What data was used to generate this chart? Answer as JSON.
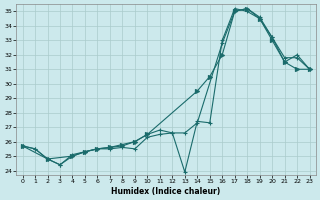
{
  "xlabel": "Humidex (Indice chaleur)",
  "xlim": [
    -0.5,
    23.5
  ],
  "ylim": [
    23.7,
    35.5
  ],
  "yticks": [
    24,
    25,
    26,
    27,
    28,
    29,
    30,
    31,
    32,
    33,
    34,
    35
  ],
  "xticks": [
    0,
    1,
    2,
    3,
    4,
    5,
    6,
    7,
    8,
    9,
    10,
    11,
    12,
    13,
    14,
    15,
    16,
    17,
    18,
    19,
    20,
    21,
    22,
    23
  ],
  "background_color": "#cce9ec",
  "grid_color": "#aacccc",
  "line_color": "#1a6b6b",
  "line1_x": [
    0,
    1,
    2,
    3,
    4,
    5,
    6,
    7,
    8,
    9,
    10,
    11,
    12,
    13,
    14,
    16,
    17,
    18,
    19,
    20,
    21,
    22,
    23
  ],
  "line1_y": [
    25.7,
    25.5,
    24.8,
    24.4,
    25.1,
    25.3,
    25.5,
    25.5,
    25.6,
    25.5,
    26.3,
    26.5,
    26.6,
    26.6,
    27.3,
    32.8,
    35.0,
    35.2,
    34.6,
    33.2,
    31.8,
    31.8,
    31.0
  ],
  "line2_x": [
    0,
    1,
    2,
    3,
    4,
    5,
    6,
    7,
    8,
    9,
    10,
    11,
    12,
    13,
    14,
    15,
    16,
    17,
    18,
    19,
    20,
    21,
    22,
    23
  ],
  "line2_y": [
    25.7,
    25.5,
    24.8,
    24.4,
    25.0,
    25.3,
    25.5,
    25.6,
    25.7,
    26.0,
    26.5,
    26.8,
    26.6,
    23.9,
    27.4,
    27.3,
    33.0,
    35.2,
    35.0,
    34.5,
    33.2,
    31.5,
    32.0,
    31.0
  ],
  "line3_x": [
    0,
    2,
    4,
    5,
    6,
    7,
    8,
    9,
    10,
    14,
    15,
    16,
    17,
    18,
    19,
    20,
    21,
    22,
    23
  ],
  "line3_y": [
    25.7,
    24.8,
    25.0,
    25.3,
    25.5,
    25.6,
    25.8,
    26.0,
    26.5,
    29.5,
    30.5,
    32.0,
    35.0,
    35.2,
    34.5,
    33.0,
    31.5,
    31.0,
    31.0
  ]
}
